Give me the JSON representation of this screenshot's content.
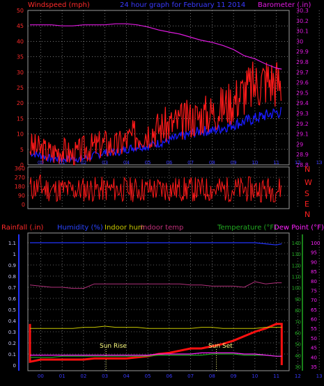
{
  "header": {
    "left_title": "Windspeed (mph)",
    "center_title": "24 hour graph for  February 11 2014",
    "right_title": "Barometer (.in)"
  },
  "colors": {
    "background": "#000000",
    "frame": "#9a9a9a",
    "grid": "#bbbbbb",
    "wind": "#ff1a1a",
    "gust_base": "#1a1aff",
    "barometer": "#e01ae0",
    "rain": "#ff1010",
    "humidity": "#2233ff",
    "indoor_hum": "#c8c800",
    "indoor_temp": "#b0307a",
    "temperature": "#22aa22",
    "dew_point": "#ff22ff",
    "sun": "#ffff80"
  },
  "chart_data": [
    {
      "type": "line",
      "title": "24 hour graph for  February 11 2014",
      "ylabel": "Windspeed (mph)",
      "y2label": "Barometer (.in)",
      "x_ticks": [
        "00",
        "01",
        "02",
        "03",
        "04",
        "05",
        "06",
        "07",
        "08",
        "09",
        "10",
        "11",
        "12",
        "13"
      ],
      "ylim": [
        0,
        50
      ],
      "y_ticks": [
        "0",
        "5",
        "10",
        "15",
        "20",
        "25",
        "30",
        "35",
        "40",
        "45",
        "50"
      ],
      "y2lim": [
        28.8,
        30.3
      ],
      "y2_ticks": [
        "28.8",
        "28.9",
        "29",
        "29.1",
        "29.2",
        "29.3",
        "29.4",
        "29.5",
        "29.6",
        "29.7",
        "29.8",
        "29.9",
        "30",
        "30.1",
        "30.2",
        "30.3"
      ],
      "x": [
        0,
        1,
        2,
        3,
        4,
        5,
        6,
        7,
        8,
        9,
        10,
        11,
        12,
        13,
        14,
        15,
        16,
        17,
        18,
        19,
        20,
        21,
        22,
        23,
        23.5
      ],
      "series": [
        {
          "name": "Windspeed",
          "axis": "left",
          "values": [
            6,
            5,
            4,
            5,
            3,
            5,
            6,
            7,
            6,
            8,
            10,
            11,
            12,
            13,
            14,
            15,
            16,
            17,
            19,
            21,
            24,
            26,
            28,
            27,
            26
          ]
        },
        {
          "name": "Gust low",
          "axis": "left",
          "values": [
            4,
            3,
            2,
            2,
            2,
            2,
            3,
            4,
            4,
            5,
            6,
            6,
            7,
            8,
            9,
            10,
            11,
            11,
            12,
            13,
            14,
            15,
            16,
            17,
            17
          ]
        },
        {
          "name": "Barometer",
          "axis": "right",
          "values": [
            30.16,
            30.16,
            30.16,
            30.15,
            30.15,
            30.16,
            30.16,
            30.16,
            30.17,
            30.17,
            30.16,
            30.14,
            30.11,
            30.09,
            30.07,
            30.04,
            30.01,
            29.99,
            29.96,
            29.92,
            29.86,
            29.83,
            29.78,
            29.74,
            29.73
          ]
        }
      ]
    },
    {
      "type": "line",
      "title": "",
      "right_labels": [
        "N",
        "W",
        "S",
        "E",
        "N"
      ],
      "ylim": [
        0,
        360
      ],
      "y_ticks": [
        "0",
        "90",
        "180",
        "270",
        "360"
      ],
      "x": [
        0,
        1,
        2,
        3,
        4,
        5,
        6,
        7,
        8,
        9,
        10,
        11,
        12,
        13,
        14,
        15,
        16,
        17,
        18,
        19,
        20,
        21,
        22,
        23,
        23.5
      ],
      "series": [
        {
          "name": "Wind direction",
          "values": [
            160,
            170,
            145,
            150,
            140,
            150,
            152,
            150,
            150,
            148,
            150,
            150,
            150,
            152,
            150,
            150,
            150,
            148,
            150,
            150,
            150,
            150,
            150,
            150,
            150
          ]
        }
      ]
    },
    {
      "type": "line",
      "legend_left": [
        "Rainfall (.in)",
        "Humidity (%)",
        "Indoor hum",
        "Indoor temp"
      ],
      "legend_right": [
        "Temperature (°F)",
        "Dew Point (°F)"
      ],
      "ylim": [
        0,
        1
      ],
      "y_ticks": [
        "0",
        "0.1",
        "0.2",
        "0.3",
        "0.4",
        "0.5",
        "0.6",
        "0.7",
        "0.8",
        "0.9",
        "1",
        "1.1"
      ],
      "y2_ticks_green": [
        "30",
        "40",
        "50",
        "60",
        "70",
        "80",
        "90",
        "100",
        "110",
        "120",
        "130",
        "140"
      ],
      "y2_ticks_pink": [
        "35",
        "40",
        "45",
        "50",
        "55",
        "60",
        "65",
        "70",
        "75",
        "80",
        "85",
        "90",
        "95",
        "100"
      ],
      "annotations": [
        "Sun Rise",
        "Sun Set"
      ],
      "sun_rise_hour": 7.1,
      "sun_set_hour": 17.4,
      "x": [
        0,
        1,
        2,
        3,
        4,
        5,
        6,
        7,
        8,
        9,
        10,
        11,
        12,
        13,
        14,
        15,
        16,
        17,
        18,
        19,
        20,
        21,
        22,
        23,
        23.5
      ],
      "series": [
        {
          "name": "Rainfall (.in)",
          "values": [
            0.03,
            0.05,
            0.05,
            0.05,
            0.05,
            0.05,
            0.06,
            0.06,
            0.06,
            0.06,
            0.07,
            0.08,
            0.1,
            0.11,
            0.13,
            0.15,
            0.15,
            0.17,
            0.19,
            0.22,
            0.26,
            0.3,
            0.33,
            0.37,
            0.37
          ]
        },
        {
          "name": "Humidity (%)",
          "values": [
            1.1,
            1.1,
            1.1,
            1.1,
            1.1,
            1.1,
            1.1,
            1.1,
            1.1,
            1.1,
            1.1,
            1.1,
            1.1,
            1.1,
            1.1,
            1.1,
            1.1,
            1.1,
            1.1,
            1.1,
            1.1,
            1.1,
            1.09,
            1.08,
            1.09
          ]
        },
        {
          "name": "Indoor hum",
          "values": [
            0.33,
            0.33,
            0.33,
            0.33,
            0.33,
            0.34,
            0.34,
            0.35,
            0.34,
            0.34,
            0.34,
            0.33,
            0.33,
            0.33,
            0.33,
            0.33,
            0.34,
            0.34,
            0.33,
            0.33,
            0.33,
            0.33,
            0.34,
            0.34,
            0.34
          ]
        },
        {
          "name": "Indoor temp",
          "values": [
            0.72,
            0.71,
            0.7,
            0.7,
            0.69,
            0.69,
            0.73,
            0.73,
            0.73,
            0.73,
            0.73,
            0.73,
            0.73,
            0.73,
            0.73,
            0.72,
            0.72,
            0.71,
            0.71,
            0.71,
            0.7,
            0.75,
            0.73,
            0.74,
            0.74
          ]
        },
        {
          "name": "Temperature (°F)",
          "values": [
            0.07,
            0.07,
            0.07,
            0.08,
            0.08,
            0.08,
            0.08,
            0.08,
            0.08,
            0.08,
            0.08,
            0.08,
            0.09,
            0.09,
            0.09,
            0.09,
            0.09,
            0.1,
            0.1,
            0.1,
            0.09,
            0.09,
            0.09,
            0.08,
            0.08
          ]
        },
        {
          "name": "Dew Point (°F)",
          "values": [
            0.09,
            0.09,
            0.09,
            0.09,
            0.09,
            0.09,
            0.09,
            0.09,
            0.09,
            0.09,
            0.09,
            0.09,
            0.1,
            0.1,
            0.1,
            0.1,
            0.11,
            0.11,
            0.11,
            0.11,
            0.1,
            0.1,
            0.09,
            0.08,
            0.08
          ]
        }
      ]
    }
  ]
}
